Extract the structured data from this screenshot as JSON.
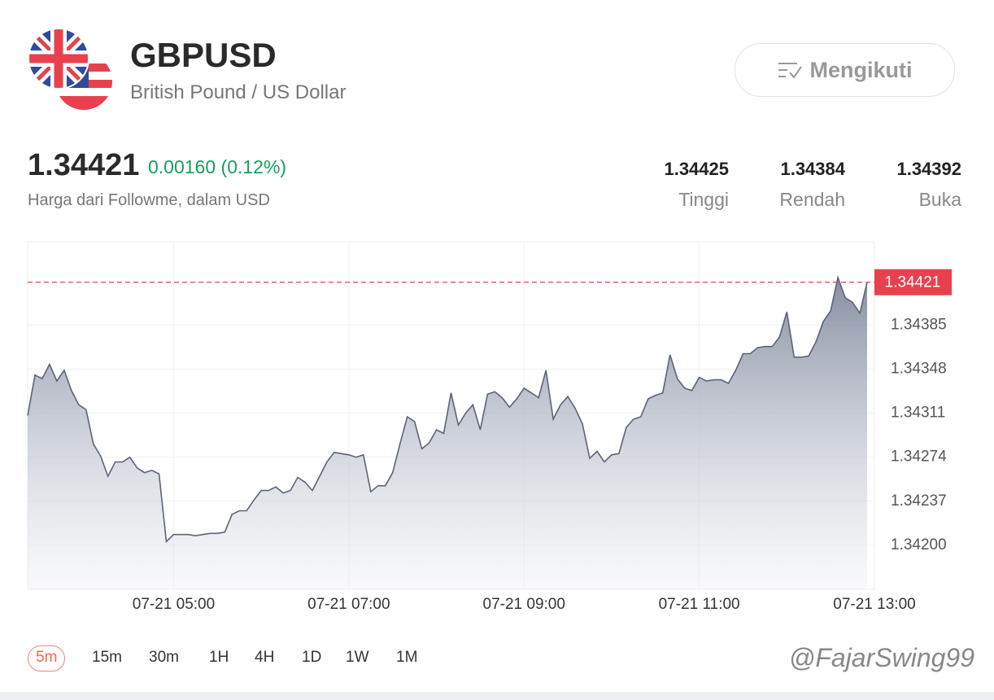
{
  "header": {
    "symbol": "GBPUSD",
    "name": "British Pound / US Dollar",
    "follow_button": "Mengikuti"
  },
  "quote": {
    "price": "1.34421",
    "change": "0.00160 (0.12%)",
    "note": "Harga dari Followme, dalam USD",
    "stats": [
      {
        "value": "1.34425",
        "label": "Tinggi"
      },
      {
        "value": "1.34384",
        "label": "Rendah"
      },
      {
        "value": "1.34392",
        "label": "Buka"
      }
    ]
  },
  "chart_data": {
    "type": "area",
    "x": [
      200,
      205,
      210,
      215,
      220,
      225,
      230,
      235,
      240,
      245,
      250,
      255,
      260,
      265,
      270,
      275,
      280,
      285,
      290,
      295,
      300,
      305,
      310,
      315,
      320,
      325,
      330,
      335,
      340,
      345,
      350,
      355,
      360,
      365,
      370,
      375,
      380,
      385,
      390,
      395,
      400,
      405,
      410,
      415,
      420,
      425,
      430,
      435,
      440,
      445,
      450,
      455,
      460,
      465,
      470,
      475,
      480,
      485,
      490,
      495,
      500,
      505,
      510,
      515,
      520,
      525,
      530,
      535,
      540,
      545,
      550,
      555,
      560,
      565,
      570,
      575,
      580,
      585,
      590,
      595,
      600,
      605,
      610,
      615,
      620,
      625,
      630,
      635,
      640,
      645,
      650,
      655,
      660,
      665,
      670,
      675,
      680,
      685,
      690,
      695,
      700,
      705,
      710,
      715,
      720,
      725,
      730,
      735,
      740,
      745,
      750,
      755,
      760,
      765,
      770,
      775
    ],
    "series": [
      {
        "color": "#5b6478",
        "values": [
          1.34309,
          1.34343,
          1.3434,
          1.34352,
          1.34338,
          1.34347,
          1.3433,
          1.34318,
          1.34314,
          1.34285,
          1.34275,
          1.34258,
          1.3427,
          1.3427,
          1.34274,
          1.34265,
          1.34261,
          1.34263,
          1.3426,
          1.34203,
          1.34209,
          1.34209,
          1.34209,
          1.34208,
          1.34209,
          1.3421,
          1.3421,
          1.34211,
          1.34226,
          1.34229,
          1.34229,
          1.34238,
          1.34246,
          1.34246,
          1.34249,
          1.34244,
          1.34246,
          1.34257,
          1.34253,
          1.34246,
          1.34258,
          1.3427,
          1.34278,
          1.34277,
          1.34276,
          1.34274,
          1.34276,
          1.34245,
          1.3425,
          1.3425,
          1.34261,
          1.34285,
          1.34308,
          1.34304,
          1.34281,
          1.34286,
          1.34297,
          1.34294,
          1.34328,
          1.34301,
          1.34311,
          1.34318,
          1.34297,
          1.34327,
          1.34329,
          1.34324,
          1.34316,
          1.34323,
          1.34332,
          1.34328,
          1.34324,
          1.34347,
          1.34306,
          1.34318,
          1.34325,
          1.34315,
          1.34302,
          1.34273,
          1.34279,
          1.3427,
          1.34276,
          1.34277,
          1.34299,
          1.34306,
          1.34308,
          1.34323,
          1.34326,
          1.34328,
          1.3436,
          1.3434,
          1.34332,
          1.3433,
          1.34341,
          1.34338,
          1.34339,
          1.34339,
          1.34336,
          1.34347,
          1.34361,
          1.34361,
          1.34366,
          1.34367,
          1.34367,
          1.34375,
          1.34396,
          1.34358,
          1.34358,
          1.34359,
          1.34371,
          1.34388,
          1.34397,
          1.34425,
          1.34408,
          1.34404,
          1.34395,
          1.34421
        ]
      }
    ],
    "current": 1.34421,
    "current_color": "#e8414d",
    "xlim": [
      200,
      780
    ],
    "xticks": [
      {
        "value": 300,
        "label": "07-21 05:00"
      },
      {
        "value": 420,
        "label": "07-21 07:00"
      },
      {
        "value": 540,
        "label": "07-21 09:00"
      },
      {
        "value": 660,
        "label": "07-21 11:00"
      },
      {
        "value": 780,
        "label": "07-21 13:00"
      }
    ],
    "ylim": [
      1.34163,
      1.34455
    ],
    "yticks": [
      {
        "value": 1.342,
        "label": "1.34200"
      },
      {
        "value": 1.34237,
        "label": "1.34237"
      },
      {
        "value": 1.34274,
        "label": "1.34274"
      },
      {
        "value": 1.34311,
        "label": "1.34311"
      },
      {
        "value": 1.34348,
        "label": "1.34348"
      },
      {
        "value": 1.34385,
        "label": "1.34385"
      }
    ],
    "grid": true
  },
  "timeframes": [
    "5m",
    "15m",
    "30m",
    "1H",
    "4H",
    "1D",
    "1W",
    "1M"
  ],
  "watermark": "@FajarSwing99"
}
